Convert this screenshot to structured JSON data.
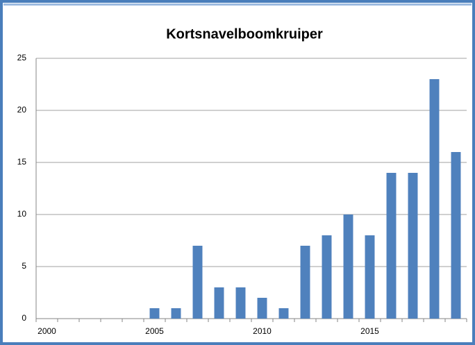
{
  "chart_data": {
    "type": "bar",
    "title": "Kortsnavelboomkruiper",
    "categories": [
      "2000",
      null,
      null,
      null,
      null,
      "2005",
      null,
      null,
      null,
      null,
      "2010",
      null,
      null,
      null,
      null,
      "2015",
      null,
      null,
      null,
      null
    ],
    "values": [
      0,
      0,
      0,
      0,
      0,
      1,
      1,
      7,
      3,
      3,
      2,
      1,
      7,
      8,
      10,
      8,
      14,
      14,
      23,
      16
    ],
    "color": "#4f81bd",
    "ylim": [
      0,
      25
    ],
    "yticks": [
      0,
      5,
      10,
      15,
      20,
      25
    ],
    "grid": true
  }
}
